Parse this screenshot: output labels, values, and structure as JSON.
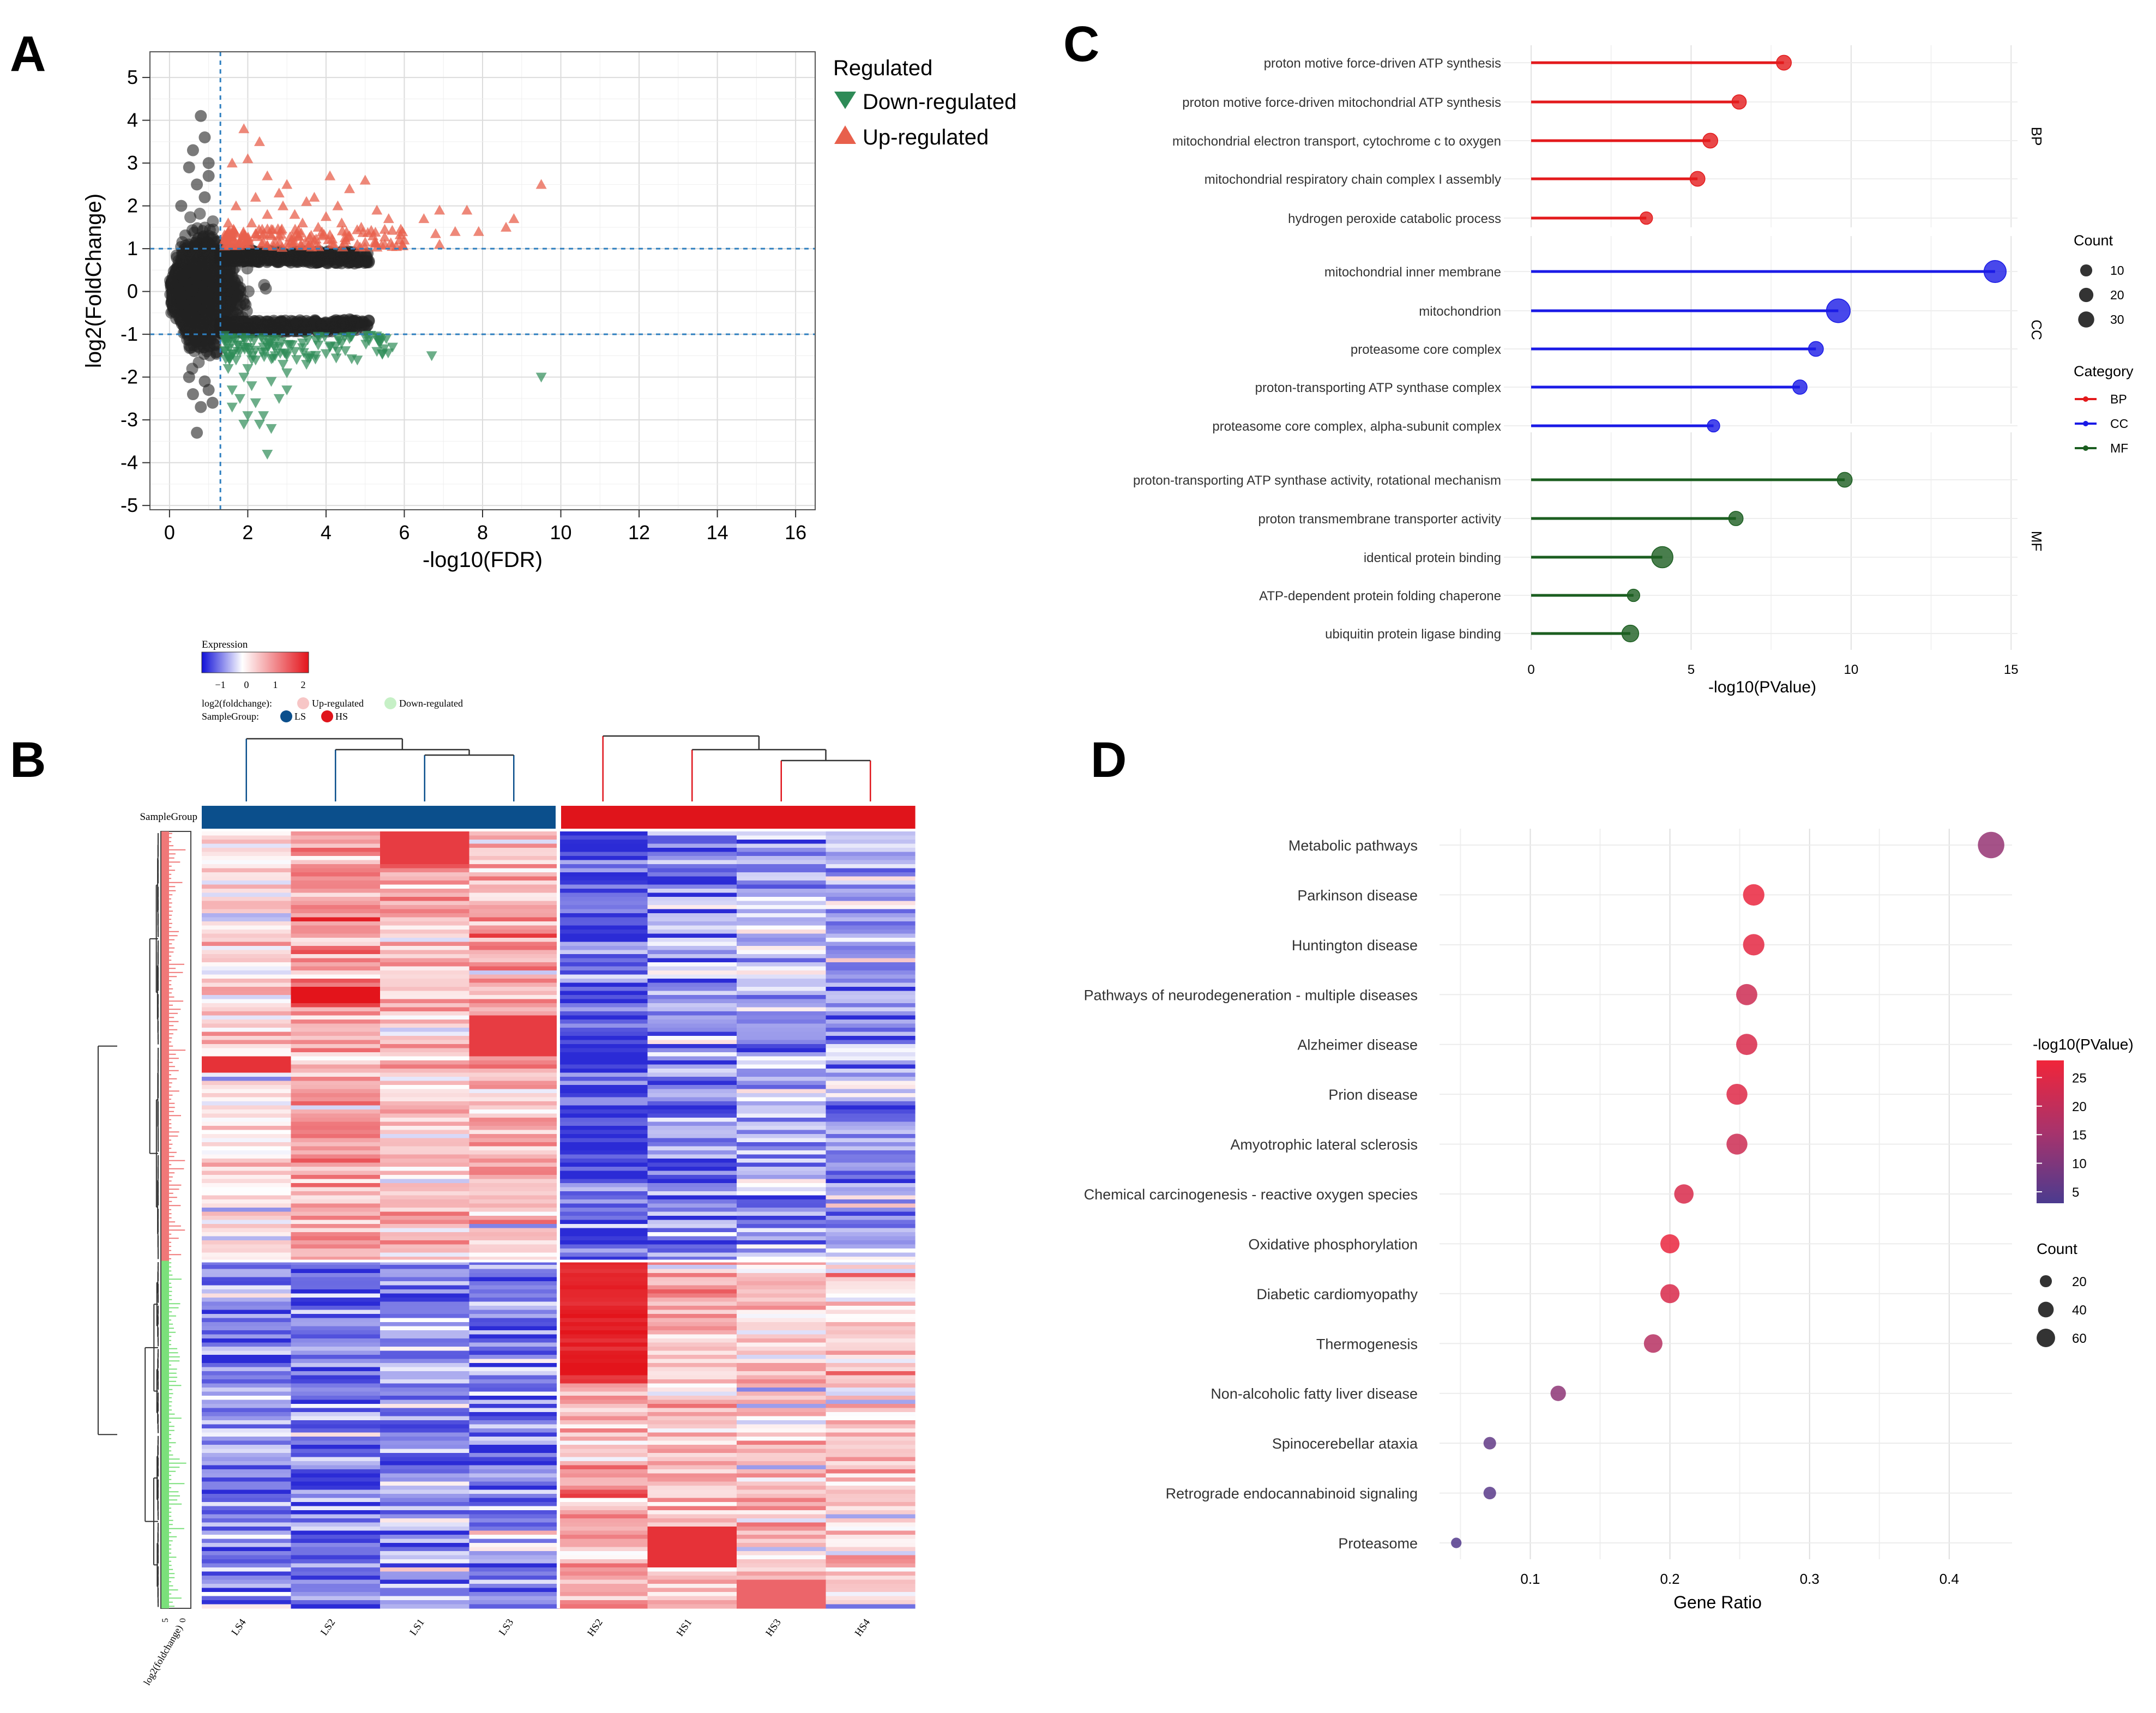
{
  "panel_labels": {
    "a": "A",
    "b": "B",
    "c": "C",
    "d": "D"
  },
  "colors": {
    "up": "#e8604c",
    "down": "#2e8b57",
    "ns": "#222222",
    "threshold": "#2f7fbf",
    "grid": "#dcdcdc",
    "bp": "#e31a1c",
    "cc": "#1a1ae6",
    "mf": "#1b5e20",
    "ls": "#0b4f8c",
    "hs": "#e0141b",
    "heat_low": "#2b2bd6",
    "heat_mid": "#ffffff",
    "heat_high": "#e3141b",
    "up_bar": "#f07878",
    "down_bar": "#7be07b",
    "kegg_low": "#4b3b8f",
    "kegg_high": "#f0253a"
  },
  "chart_data": [
    {
      "id": "A",
      "type": "scatter",
      "title": "",
      "xlabel": "-log10(FDR)",
      "ylabel": "log2(FoldChange)",
      "xlim": [
        -0.5,
        16.5
      ],
      "ylim": [
        -5.1,
        5.6
      ],
      "xticks": [
        "0",
        "2",
        "4",
        "6",
        "8",
        "10",
        "12",
        "14",
        "16"
      ],
      "yticks": [
        "-5",
        "-4",
        "-3",
        "-2",
        "-1",
        "0",
        "1",
        "2",
        "3",
        "4",
        "5"
      ],
      "grid": true,
      "thresholds": {
        "fdr": 1.3,
        "log2fc": [
          1,
          -1
        ]
      },
      "legend": {
        "title": "Regulated",
        "entries": [
          "Down-regulated",
          "Up-regulated"
        ],
        "position": "top-right outside"
      },
      "up_points": [
        [
          1.9,
          3.8
        ],
        [
          2.3,
          3.5
        ],
        [
          2.0,
          3.1
        ],
        [
          1.6,
          3.0
        ],
        [
          2.5,
          2.7
        ],
        [
          4.1,
          2.7
        ],
        [
          5.0,
          2.6
        ],
        [
          3.0,
          2.5
        ],
        [
          4.6,
          2.4
        ],
        [
          2.8,
          2.3
        ],
        [
          3.7,
          2.2
        ],
        [
          2.2,
          2.2
        ],
        [
          3.5,
          2.1
        ],
        [
          1.7,
          2.0
        ],
        [
          2.9,
          2.0
        ],
        [
          4.3,
          2.0
        ],
        [
          5.3,
          1.9
        ],
        [
          6.9,
          1.9
        ],
        [
          7.6,
          1.9
        ],
        [
          8.8,
          1.7
        ],
        [
          9.5,
          2.5
        ],
        [
          2.5,
          1.8
        ],
        [
          3.2,
          1.8
        ],
        [
          4.0,
          1.75
        ],
        [
          5.6,
          1.7
        ],
        [
          6.5,
          1.7
        ],
        [
          8.6,
          1.5
        ],
        [
          7.3,
          1.4
        ],
        [
          7.9,
          1.4
        ],
        [
          1.5,
          1.6
        ],
        [
          2.1,
          1.6
        ],
        [
          3.4,
          1.6
        ],
        [
          4.4,
          1.6
        ],
        [
          4.9,
          1.5
        ],
        [
          5.5,
          1.45
        ],
        [
          6.8,
          1.35
        ],
        [
          1.6,
          1.3
        ],
        [
          2.2,
          1.35
        ],
        [
          2.8,
          1.3
        ],
        [
          3.3,
          1.3
        ],
        [
          3.9,
          1.3
        ],
        [
          4.6,
          1.3
        ],
        [
          5.2,
          1.3
        ],
        [
          6.0,
          1.2
        ],
        [
          6.9,
          1.1
        ],
        [
          1.4,
          1.2
        ],
        [
          1.8,
          1.15
        ],
        [
          2.4,
          1.15
        ],
        [
          3.0,
          1.1
        ],
        [
          3.6,
          1.1
        ],
        [
          4.2,
          1.1
        ],
        [
          4.8,
          1.1
        ],
        [
          5.8,
          1.05
        ],
        [
          1.5,
          1.4
        ],
        [
          2.6,
          1.45
        ],
        [
          3.8,
          1.5
        ],
        [
          2.0,
          1.25
        ],
        [
          4.5,
          1.2
        ],
        [
          5.0,
          1.15
        ],
        [
          5.5,
          1.1
        ]
      ],
      "down_points": [
        [
          9.5,
          -2.0
        ],
        [
          6.7,
          -1.5
        ],
        [
          5.7,
          -1.3
        ],
        [
          4.4,
          -1.2
        ],
        [
          5.3,
          -1.4
        ],
        [
          4.8,
          -1.6
        ],
        [
          4.1,
          -1.3
        ],
        [
          3.5,
          -1.7
        ],
        [
          3.0,
          -1.9
        ],
        [
          2.6,
          -2.1
        ],
        [
          2.1,
          -2.2
        ],
        [
          1.8,
          -2.5
        ],
        [
          2.4,
          -2.9
        ],
        [
          2.3,
          -3.1
        ],
        [
          2.6,
          -3.2
        ],
        [
          1.9,
          -3.1
        ],
        [
          2.5,
          -3.8
        ],
        [
          1.6,
          -2.7
        ],
        [
          1.9,
          -2.0
        ],
        [
          2.2,
          -1.6
        ],
        [
          2.7,
          -1.5
        ],
        [
          3.2,
          -1.4
        ],
        [
          3.8,
          -1.25
        ],
        [
          4.6,
          -1.1
        ],
        [
          5.1,
          -1.15
        ],
        [
          1.5,
          -1.2
        ],
        [
          1.8,
          -1.4
        ],
        [
          2.0,
          -1.8
        ],
        [
          2.9,
          -1.7
        ],
        [
          3.4,
          -1.2
        ],
        [
          2.4,
          -1.3
        ],
        [
          1.7,
          -1.6
        ],
        [
          1.5,
          -1.8
        ],
        [
          2.2,
          -2.6
        ],
        [
          3.0,
          -2.3
        ],
        [
          3.6,
          -1.5
        ],
        [
          4.0,
          -1.45
        ],
        [
          1.6,
          -2.3
        ],
        [
          2.8,
          -2.5
        ],
        [
          2.0,
          -2.9
        ]
      ],
      "extreme_ns_points": [
        [
          0.8,
          4.1
        ],
        [
          0.9,
          3.6
        ],
        [
          0.6,
          3.3
        ],
        [
          0.5,
          2.9
        ],
        [
          1.0,
          3.0
        ],
        [
          0.7,
          2.5
        ],
        [
          0.9,
          2.2
        ],
        [
          0.3,
          2.0
        ],
        [
          0.6,
          -2.4
        ],
        [
          0.8,
          -2.7
        ],
        [
          1.0,
          -2.3
        ],
        [
          0.7,
          -3.3
        ],
        [
          0.9,
          -2.1
        ],
        [
          0.5,
          -2.0
        ],
        [
          1.1,
          -2.6
        ],
        [
          1.0,
          2.7
        ]
      ]
    },
    {
      "id": "B",
      "type": "heatmap",
      "legend": {
        "expression_title": "Expression",
        "expression_ticks": [
          "−1",
          "0",
          "1",
          "2"
        ],
        "fc_label": "log2(foldchange):",
        "fc_entries": [
          "Up-regulated",
          "Down-regulated"
        ],
        "group_label": "SampleGroup:",
        "group_entries": [
          "LS",
          "HS"
        ]
      },
      "annotation_label": "SampleGroup",
      "columns": [
        "LS4",
        "LS2",
        "LS1",
        "LS3",
        "HS2",
        "HS1",
        "HS3",
        "HS4"
      ],
      "column_groups": [
        "LS",
        "LS",
        "LS",
        "LS",
        "HS",
        "HS",
        "HS",
        "HS"
      ],
      "row_bar_axis_label": "log2(foldchange)",
      "row_bar_ticks": [
        "5",
        "0"
      ],
      "row_split": {
        "up_fraction": 0.55
      }
    },
    {
      "id": "C",
      "type": "lollipop",
      "xlabel": "-log10(PValue)",
      "xlim": [
        0,
        15.2
      ],
      "xticks": [
        "0",
        "5",
        "10",
        "15"
      ],
      "grid": true,
      "facets": [
        "BP",
        "CC",
        "MF"
      ],
      "legend": {
        "count_title": "Count",
        "count_entries": [
          "10",
          "20",
          "30"
        ],
        "count_values": [
          10,
          20,
          30
        ],
        "category_title": "Category",
        "category_entries": [
          "BP",
          "CC",
          "MF"
        ]
      },
      "terms": [
        {
          "label": "proton motive force-driven ATP synthesis",
          "cat": "BP",
          "value": 7.9,
          "count": 8
        },
        {
          "label": "proton motive force-driven mitochondrial ATP synthesis",
          "cat": "BP",
          "value": 6.5,
          "count": 7
        },
        {
          "label": "mitochondrial electron transport, cytochrome c to oxygen",
          "cat": "BP",
          "value": 5.6,
          "count": 8
        },
        {
          "label": "mitochondrial respiratory chain complex I assembly",
          "cat": "BP",
          "value": 5.2,
          "count": 8
        },
        {
          "label": "hydrogen peroxide catabolic process",
          "cat": "BP",
          "value": 3.6,
          "count": 4
        },
        {
          "label": "mitochondrial inner membrane",
          "cat": "CC",
          "value": 14.5,
          "count": 28
        },
        {
          "label": "mitochondrion",
          "cat": "CC",
          "value": 9.6,
          "count": 34
        },
        {
          "label": "proteasome core complex",
          "cat": "CC",
          "value": 8.9,
          "count": 8
        },
        {
          "label": "proton-transporting ATP synthase complex",
          "cat": "CC",
          "value": 8.4,
          "count": 7
        },
        {
          "label": "proteasome core complex, alpha-subunit complex",
          "cat": "CC",
          "value": 5.7,
          "count": 4
        },
        {
          "label": "proton-transporting ATP synthase activity, rotational mechanism",
          "cat": "MF",
          "value": 9.8,
          "count": 8
        },
        {
          "label": "proton transmembrane transporter activity",
          "cat": "MF",
          "value": 6.4,
          "count": 7
        },
        {
          "label": "identical protein binding",
          "cat": "MF",
          "value": 4.1,
          "count": 25
        },
        {
          "label": "ATP-dependent protein folding chaperone",
          "cat": "MF",
          "value": 3.2,
          "count": 4
        },
        {
          "label": "ubiquitin protein ligase binding",
          "cat": "MF",
          "value": 3.1,
          "count": 12
        }
      ]
    },
    {
      "id": "D",
      "type": "scatter",
      "xlabel": "Gene Ratio",
      "xlim": [
        0.035,
        0.445
      ],
      "xticks": [
        "0.1",
        "0.2",
        "0.3",
        "0.4"
      ],
      "xtick_values": [
        0.1,
        0.2,
        0.3,
        0.4
      ],
      "grid": true,
      "legend": {
        "color_title": "-log10(PValue)",
        "color_ticks": [
          "25",
          "20",
          "15",
          "10",
          "5"
        ],
        "color_range": [
          3,
          28
        ],
        "count_title": "Count",
        "count_entries": [
          "20",
          "40",
          "60"
        ],
        "count_values": [
          20,
          40,
          60
        ]
      },
      "terms": [
        {
          "label": "Metabolic pathways",
          "ratio": 0.43,
          "pvalue": 13,
          "count": 62
        },
        {
          "label": "Parkinson disease",
          "ratio": 0.26,
          "pvalue": 27,
          "count": 38
        },
        {
          "label": "Huntington disease",
          "ratio": 0.26,
          "pvalue": 26,
          "count": 38
        },
        {
          "label": "Pathways of neurodegeneration - multiple diseases",
          "ratio": 0.255,
          "pvalue": 22,
          "count": 37
        },
        {
          "label": "Alzheimer disease",
          "ratio": 0.255,
          "pvalue": 24,
          "count": 37
        },
        {
          "label": "Prion disease",
          "ratio": 0.248,
          "pvalue": 25,
          "count": 36
        },
        {
          "label": "Amyotrophic lateral sclerosis",
          "ratio": 0.248,
          "pvalue": 22,
          "count": 36
        },
        {
          "label": "Chemical carcinogenesis - reactive oxygen species",
          "ratio": 0.21,
          "pvalue": 24,
          "count": 30
        },
        {
          "label": "Oxidative phosphorylation",
          "ratio": 0.2,
          "pvalue": 27,
          "count": 29
        },
        {
          "label": "Diabetic cardiomyopathy",
          "ratio": 0.2,
          "pvalue": 24,
          "count": 29
        },
        {
          "label": "Thermogenesis",
          "ratio": 0.188,
          "pvalue": 18,
          "count": 27
        },
        {
          "label": "Non-alcoholic fatty liver disease",
          "ratio": 0.12,
          "pvalue": 12,
          "count": 17
        },
        {
          "label": "Spinocerebellar ataxia",
          "ratio": 0.071,
          "pvalue": 6,
          "count": 10
        },
        {
          "label": "Retrograde endocannabinoid signaling",
          "ratio": 0.071,
          "pvalue": 5,
          "count": 10
        },
        {
          "label": "Proteasome",
          "ratio": 0.047,
          "pvalue": 4,
          "count": 6
        }
      ]
    }
  ]
}
